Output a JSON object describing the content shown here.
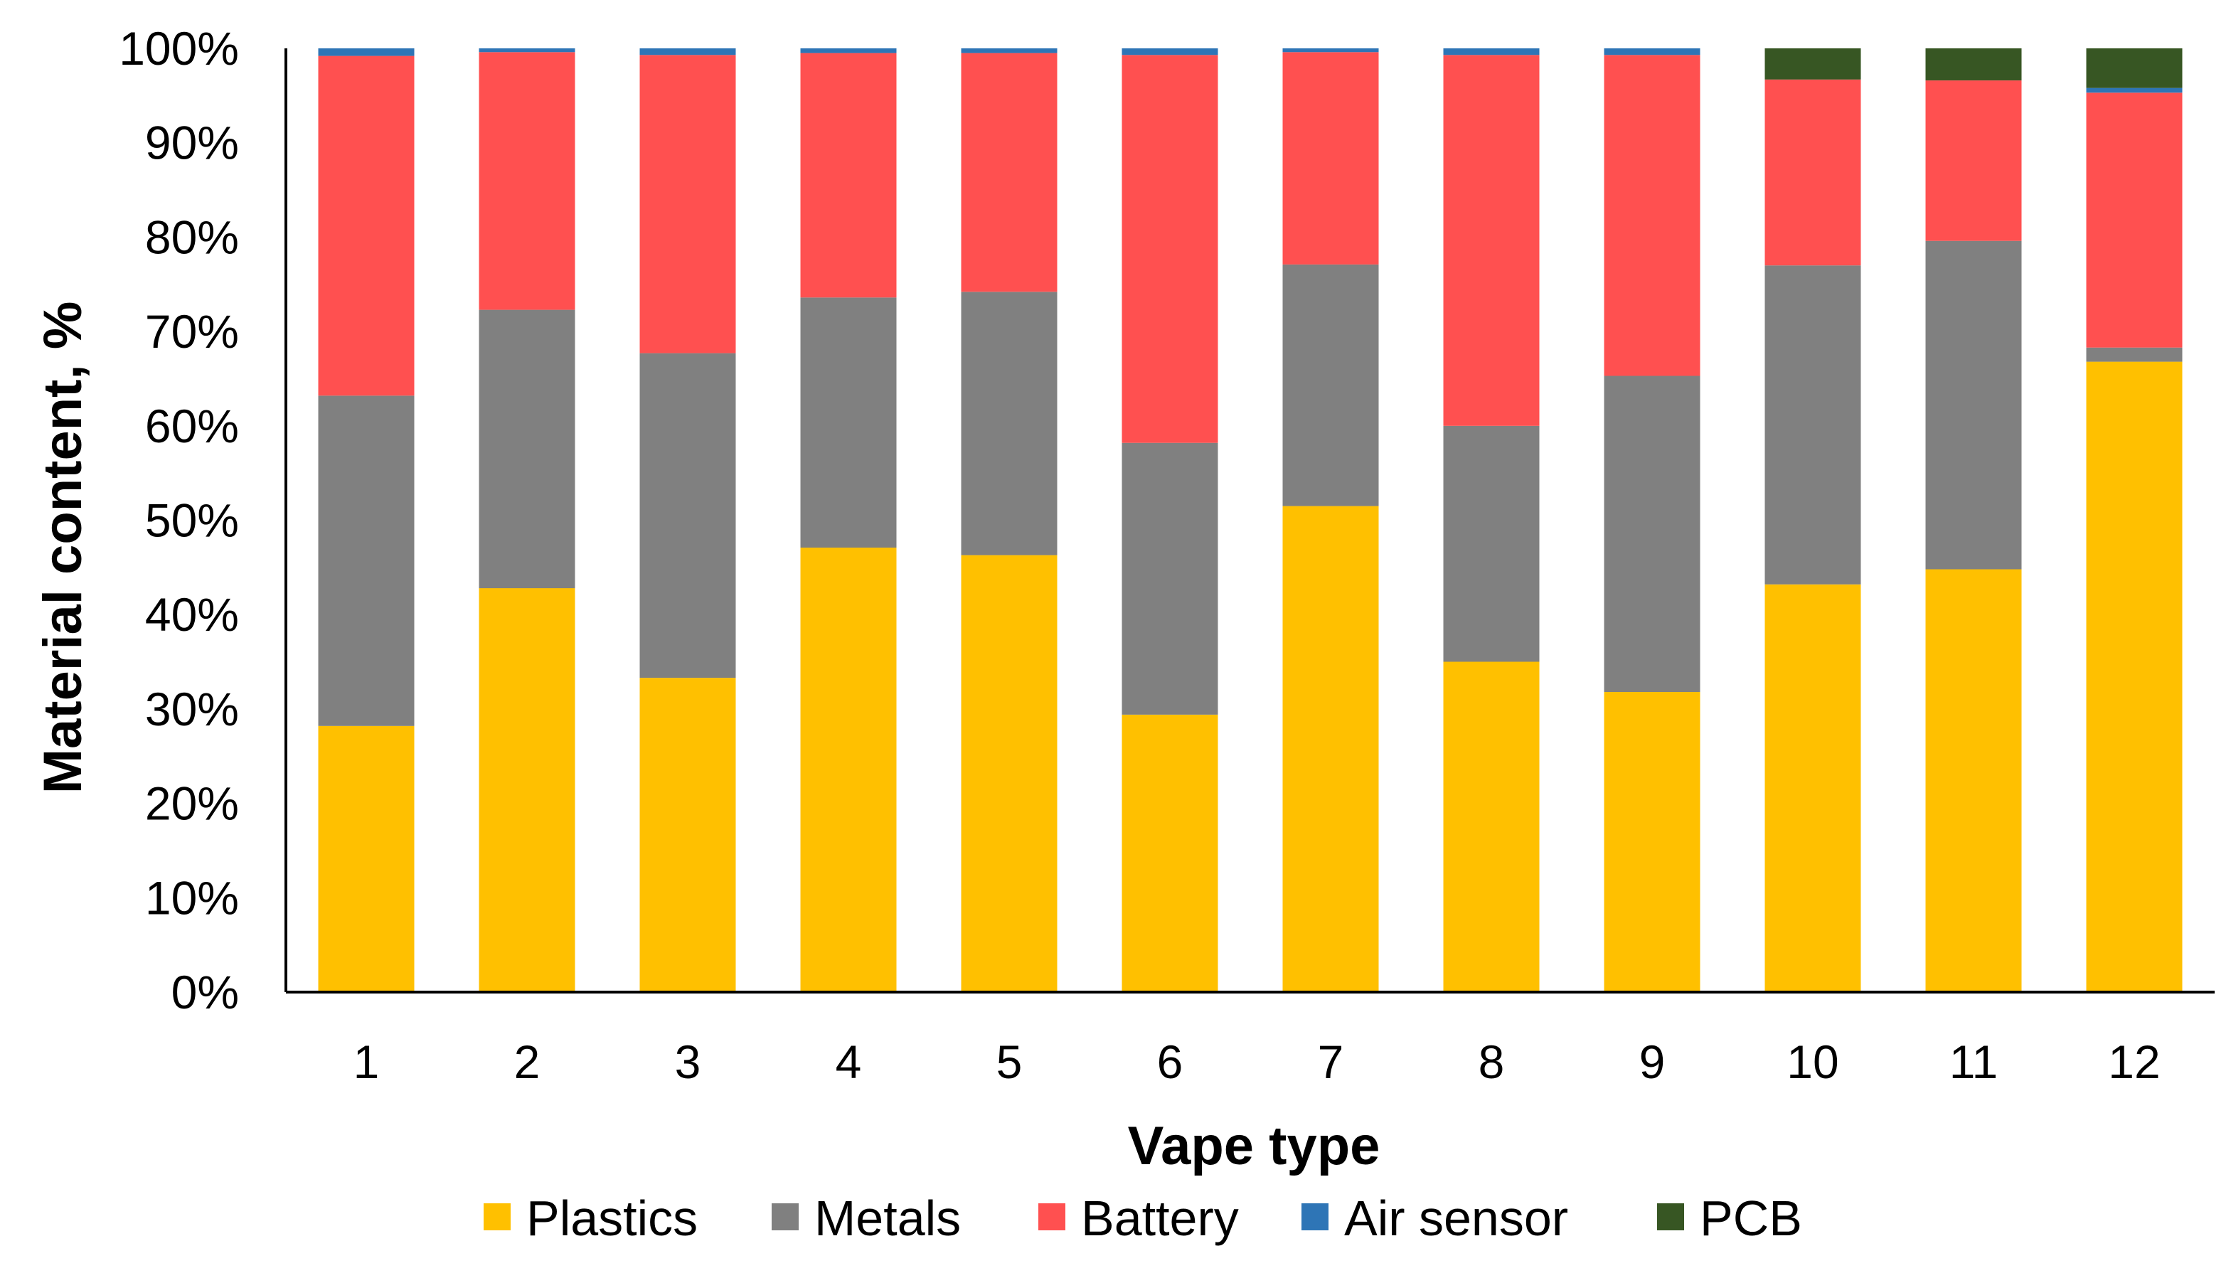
{
  "chart_data": {
    "type": "bar",
    "stacked": true,
    "normalized": true,
    "xlabel": "Vape type",
    "ylabel": "Material content, %",
    "ylim": [
      0,
      100
    ],
    "yticks": [
      "0%",
      "10%",
      "20%",
      "30%",
      "40%",
      "50%",
      "60%",
      "70%",
      "80%",
      "90%",
      "100%"
    ],
    "grid": false,
    "legend_position": "bottom",
    "categories": [
      "1",
      "2",
      "3",
      "4",
      "5",
      "6",
      "7",
      "8",
      "9",
      "10",
      "11",
      "12"
    ],
    "series": [
      {
        "name": "Plastics",
        "color": "#FFC000",
        "values": [
          28.2,
          42.8,
          33.3,
          47.1,
          46.3,
          29.4,
          51.5,
          35.0,
          31.8,
          43.2,
          44.8,
          66.8
        ]
      },
      {
        "name": "Metals",
        "color": "#808080",
        "values": [
          35.0,
          29.5,
          34.4,
          26.5,
          27.9,
          28.8,
          25.6,
          25.0,
          33.5,
          33.8,
          34.8,
          1.5
        ]
      },
      {
        "name": "Battery",
        "color": "#FF5050",
        "values": [
          36.0,
          27.3,
          31.6,
          25.9,
          25.3,
          41.1,
          22.5,
          39.3,
          34.0,
          19.7,
          17.0,
          27.0
        ]
      },
      {
        "name": "Air sensor",
        "color": "#2E75B6",
        "values": [
          0.8,
          0.4,
          0.7,
          0.5,
          0.5,
          0.7,
          0.4,
          0.7,
          0.7,
          0.0,
          0.0,
          0.5
        ]
      },
      {
        "name": "PCB",
        "color": "#375623",
        "values": [
          0,
          0,
          0,
          0,
          0,
          0,
          0,
          0,
          0,
          3.3,
          3.4,
          4.2
        ]
      }
    ]
  }
}
